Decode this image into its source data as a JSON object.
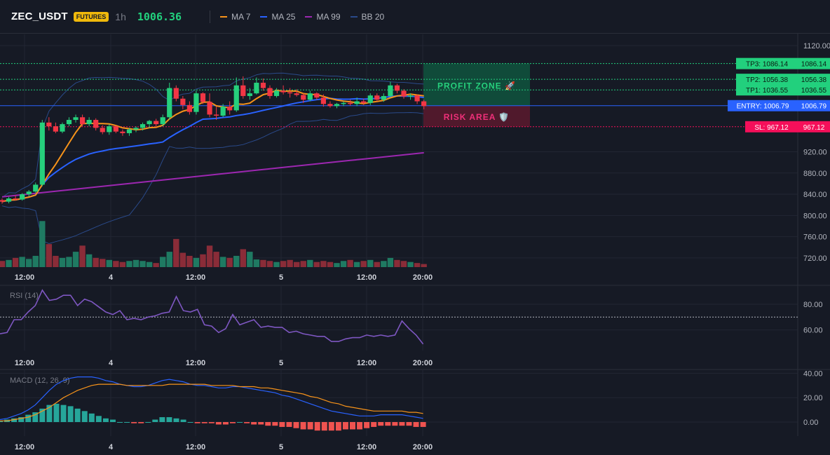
{
  "header": {
    "symbol": "ZEC_USDT",
    "badge": "FUTURES",
    "interval": "1h",
    "last_price": "1006.36",
    "legend": [
      {
        "label": "MA 7",
        "color": "#f7931a"
      },
      {
        "label": "MA 25",
        "color": "#2962ff"
      },
      {
        "label": "MA 99",
        "color": "#9c27b0"
      },
      {
        "label": "BB 20",
        "color": "#2a4a8a"
      }
    ]
  },
  "colors": {
    "up": "#26d07c",
    "down": "#f23645",
    "up_volume": "#1f7a62",
    "down_volume": "#8a2c38",
    "profit_zone": "#0f5c42",
    "risk_area": "#5a1a2e",
    "entry": "#2962ff"
  },
  "trade_levels": [
    {
      "key": "tp3",
      "label": "TP3: 1086.14",
      "axis_label": "1086.14",
      "price": 1086.14,
      "color": "#22d07d"
    },
    {
      "key": "tp2",
      "label": "TP2: 1056.38",
      "axis_label": "1056.38",
      "price": 1056.38,
      "color": "#22d07d"
    },
    {
      "key": "tp1",
      "label": "TP1: 1036.55",
      "axis_label": "1036.55",
      "price": 1036.55,
      "color": "#22d07d"
    },
    {
      "key": "entry",
      "label": "ENTRY: 1006.79",
      "axis_label": "1006.79",
      "price": 1006.79,
      "color": "#2962ff"
    },
    {
      "key": "sl",
      "label": "SL: 967.12",
      "axis_label": "967.12",
      "price": 967.12,
      "color": "#f50f5a"
    }
  ],
  "zones": {
    "profit_label": "PROFIT ZONE 🚀",
    "risk_label": "RISK AREA 🛡️"
  },
  "time_axis": [
    "12:00",
    "4",
    "12:00",
    "5",
    "12:00",
    "20:00"
  ],
  "price_axis": {
    "ticks": [
      "1120.00",
      "920.00",
      "880.00",
      "840.00",
      "800.00",
      "760.00",
      "720.00"
    ],
    "values": [
      1120,
      920,
      880,
      840,
      800,
      760,
      720
    ]
  },
  "rsi": {
    "title": "RSI (14)",
    "ticks": [
      "80.00",
      "60.00"
    ],
    "tick_values": [
      80,
      60
    ],
    "overbought": 70,
    "values": [
      57,
      58,
      68,
      68,
      74,
      79,
      91,
      83,
      84,
      87,
      87,
      79,
      84,
      82,
      78,
      74,
      72,
      75,
      68,
      69,
      68,
      70,
      71,
      73,
      74,
      86,
      75,
      74,
      76,
      64,
      63,
      58,
      61,
      72,
      64,
      66,
      68,
      62,
      63,
      62,
      62,
      58,
      59,
      57,
      56,
      55,
      55,
      51,
      51,
      53,
      54,
      54,
      56,
      55,
      56,
      55,
      56,
      67,
      61,
      56,
      49
    ]
  },
  "macd": {
    "title": "MACD (12, 26, 9)",
    "ticks": [
      "40.00",
      "20.00",
      "0.00"
    ],
    "tick_values": [
      40,
      20,
      0
    ],
    "macd": [
      2,
      3,
      5,
      7,
      10,
      14,
      20,
      26,
      31,
      34,
      36,
      37,
      37,
      37,
      36,
      34,
      33,
      31,
      30,
      29,
      29,
      30,
      32,
      34,
      35,
      34,
      33,
      31,
      30,
      30,
      29,
      28,
      28,
      29,
      29,
      28,
      27,
      26,
      25,
      24,
      22,
      21,
      19,
      17,
      15,
      13,
      11,
      9,
      8,
      7,
      6,
      5,
      5,
      5,
      6,
      6,
      6,
      6,
      5,
      4,
      3
    ],
    "signal": [
      1,
      1,
      2,
      3,
      4,
      6,
      9,
      12,
      16,
      20,
      23,
      26,
      28,
      30,
      31,
      31,
      31,
      31,
      30,
      30,
      30,
      30,
      30,
      30,
      31,
      31,
      31,
      31,
      31,
      31,
      30,
      30,
      30,
      30,
      29,
      29,
      29,
      28,
      28,
      27,
      26,
      25,
      24,
      23,
      21,
      20,
      18,
      16,
      15,
      13,
      12,
      11,
      10,
      9,
      9,
      9,
      9,
      9,
      8,
      8,
      7
    ],
    "histogram": [
      1,
      2,
      3,
      4,
      6,
      8,
      11,
      14,
      15,
      14,
      13,
      11,
      9,
      7,
      5,
      3,
      2,
      0,
      0,
      -1,
      -1,
      0,
      2,
      4,
      4,
      3,
      2,
      0,
      -1,
      -1,
      -1,
      -2,
      -2,
      -1,
      0,
      -1,
      -2,
      -2,
      -3,
      -3,
      -4,
      -4,
      -5,
      -6,
      -6,
      -7,
      -7,
      -7,
      -7,
      -6,
      -6,
      -6,
      -5,
      -4,
      -3,
      -3,
      -3,
      -3,
      -3,
      -4,
      -4
    ]
  },
  "candles": [
    [
      829,
      832,
      822,
      826
    ],
    [
      826,
      835,
      823,
      832
    ],
    [
      832,
      838,
      828,
      830
    ],
    [
      830,
      842,
      828,
      840
    ],
    [
      840,
      848,
      836,
      845
    ],
    [
      845,
      862,
      843,
      858
    ],
    [
      858,
      980,
      855,
      975
    ],
    [
      975,
      985,
      960,
      968
    ],
    [
      968,
      975,
      955,
      958
    ],
    [
      958,
      975,
      955,
      972
    ],
    [
      972,
      985,
      968,
      980
    ],
    [
      980,
      990,
      975,
      985
    ],
    [
      985,
      990,
      968,
      972
    ],
    [
      972,
      985,
      968,
      980
    ],
    [
      980,
      983,
      960,
      965
    ],
    [
      965,
      970,
      953,
      957
    ],
    [
      957,
      972,
      952,
      968
    ],
    [
      968,
      970,
      955,
      958
    ],
    [
      958,
      962,
      950,
      955
    ],
    [
      955,
      965,
      950,
      962
    ],
    [
      962,
      968,
      957,
      965
    ],
    [
      965,
      975,
      960,
      972
    ],
    [
      972,
      980,
      965,
      978
    ],
    [
      978,
      982,
      968,
      972
    ],
    [
      972,
      990,
      968,
      985
    ],
    [
      985,
      1050,
      980,
      1040
    ],
    [
      1040,
      1045,
      1015,
      1020
    ],
    [
      1020,
      1025,
      1000,
      1008
    ],
    [
      1008,
      1015,
      990,
      995
    ],
    [
      995,
      1035,
      990,
      1030
    ],
    [
      1030,
      1032,
      1010,
      1014
    ],
    [
      1014,
      1030,
      985,
      990
    ],
    [
      990,
      1005,
      980,
      988
    ],
    [
      988,
      1010,
      985,
      1005
    ],
    [
      1005,
      1015,
      990,
      998
    ],
    [
      998,
      1060,
      995,
      1045
    ],
    [
      1045,
      1062,
      1020,
      1025
    ],
    [
      1025,
      1040,
      1018,
      1030
    ],
    [
      1030,
      1060,
      1028,
      1050
    ],
    [
      1050,
      1058,
      1035,
      1040
    ],
    [
      1040,
      1045,
      1020,
      1025
    ],
    [
      1025,
      1040,
      1022,
      1035
    ],
    [
      1035,
      1045,
      1028,
      1032
    ],
    [
      1032,
      1040,
      1022,
      1030
    ],
    [
      1030,
      1038,
      1024,
      1027
    ],
    [
      1027,
      1030,
      1012,
      1018
    ],
    [
      1018,
      1035,
      1015,
      1030
    ],
    [
      1030,
      1032,
      1018,
      1022
    ],
    [
      1022,
      1028,
      1005,
      1010
    ],
    [
      1010,
      1015,
      1003,
      1006
    ],
    [
      1006,
      1012,
      1002,
      1010
    ],
    [
      1010,
      1015,
      1006,
      1012
    ],
    [
      1012,
      1018,
      1007,
      1010
    ],
    [
      1010,
      1022,
      1006,
      1015
    ],
    [
      1015,
      1020,
      1008,
      1012
    ],
    [
      1012,
      1030,
      1008,
      1026
    ],
    [
      1026,
      1030,
      1015,
      1018
    ],
    [
      1018,
      1030,
      1014,
      1025
    ],
    [
      1025,
      1052,
      1022,
      1045
    ],
    [
      1045,
      1048,
      1030,
      1035
    ],
    [
      1035,
      1038,
      1020,
      1024
    ],
    [
      1024,
      1030,
      1018,
      1026
    ],
    [
      1026,
      1028,
      1010,
      1015
    ],
    [
      1015,
      1018,
      1000,
      1006
    ]
  ],
  "volumes": [
    12,
    14,
    18,
    20,
    16,
    22,
    90,
    45,
    22,
    18,
    20,
    30,
    42,
    25,
    18,
    16,
    14,
    12,
    10,
    12,
    14,
    12,
    10,
    8,
    20,
    30,
    55,
    28,
    22,
    18,
    25,
    42,
    30,
    20,
    18,
    22,
    35,
    30,
    15,
    14,
    12,
    10,
    12,
    14,
    10,
    12,
    14,
    10,
    12,
    10,
    8,
    12,
    14,
    10,
    12,
    14,
    10,
    12,
    18,
    14,
    12,
    10,
    8,
    6
  ]
}
